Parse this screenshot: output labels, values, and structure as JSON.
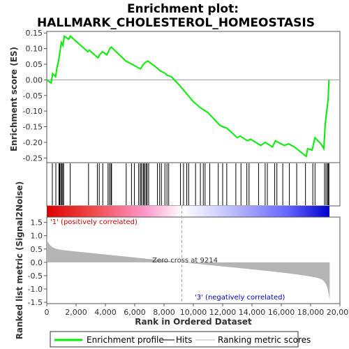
{
  "chart_data": {
    "type": "line",
    "title_line1": "Enrichment plot:",
    "title_line2": "HALLMARK_CHOLESTEROL_HOMEOSTASIS",
    "xlabel": "Rank in Ordered Dataset",
    "top_ylabel": "Enrichment score (ES)",
    "bottom_ylabel_line1": "Ranked list metric (Signal2Noise)",
    "bottom_ylabel_line2": "",
    "xlim": [
      0,
      20000
    ],
    "x_ticks": [
      0,
      2000,
      4000,
      6000,
      8000,
      10000,
      12000,
      14000,
      16000,
      18000,
      20000
    ],
    "x_tick_labels": [
      "0",
      "2,000",
      "4,000",
      "6,000",
      "8,000",
      "10,000",
      "12,000",
      "14,000",
      "16,000",
      "18,000",
      "20,000"
    ],
    "es_ylim": [
      -0.265,
      0.155
    ],
    "es_ticks": [
      -0.25,
      -0.2,
      -0.15,
      -0.1,
      -0.05,
      0.0,
      0.05,
      0.1,
      0.15
    ],
    "es_tick_labels": [
      "-0.25",
      "-0.20",
      "-0.15",
      "-0.10",
      "-0.05",
      "0.00",
      "0.05",
      "0.10",
      "0.15"
    ],
    "metric_ylim": [
      -1.55,
      1.7
    ],
    "metric_ticks": [
      -1.5,
      -1.0,
      -0.5,
      0.0,
      0.5,
      1.0,
      1.5
    ],
    "metric_tick_labels": [
      "-1.5",
      "-1.0",
      "-0.5",
      "0.0",
      "0.5",
      "1.0",
      "1.5"
    ],
    "n_genes": 19300,
    "zero_cross": 9214,
    "zero_cross_label": "Zero cross at 9214",
    "pos_label": "'1' (positively correlated)",
    "neg_label": "'3' (negatively correlated)",
    "enrichment_profile": [
      [
        0,
        0.0
      ],
      [
        300,
        -0.01
      ],
      [
        400,
        0.02
      ],
      [
        600,
        0.01
      ],
      [
        700,
        0.04
      ],
      [
        800,
        0.06
      ],
      [
        900,
        0.09
      ],
      [
        1000,
        0.12
      ],
      [
        1100,
        0.11
      ],
      [
        1200,
        0.14
      ],
      [
        1500,
        0.13
      ],
      [
        1600,
        0.14
      ],
      [
        2800,
        0.09
      ],
      [
        2900,
        0.095
      ],
      [
        3500,
        0.07
      ],
      [
        3600,
        0.08
      ],
      [
        3800,
        0.09
      ],
      [
        4100,
        0.08
      ],
      [
        4300,
        0.1
      ],
      [
        4400,
        0.105
      ],
      [
        5400,
        0.06
      ],
      [
        5800,
        0.05
      ],
      [
        6200,
        0.04
      ],
      [
        6400,
        0.035
      ],
      [
        6600,
        0.05
      ],
      [
        6700,
        0.055
      ],
      [
        6900,
        0.06
      ],
      [
        7600,
        0.035
      ],
      [
        7700,
        0.03
      ],
      [
        8100,
        0.02
      ],
      [
        8200,
        0.015
      ],
      [
        8500,
        0.01
      ],
      [
        9100,
        -0.02
      ],
      [
        10000,
        -0.07
      ],
      [
        10500,
        -0.09
      ],
      [
        11000,
        -0.105
      ],
      [
        11600,
        -0.135
      ],
      [
        11800,
        -0.145
      ],
      [
        12000,
        -0.15
      ],
      [
        12300,
        -0.155
      ],
      [
        13000,
        -0.185
      ],
      [
        13200,
        -0.18
      ],
      [
        13700,
        -0.195
      ],
      [
        13900,
        -0.19
      ],
      [
        14600,
        -0.21
      ],
      [
        14900,
        -0.2
      ],
      [
        15400,
        -0.215
      ],
      [
        15600,
        -0.195
      ],
      [
        16200,
        -0.21
      ],
      [
        16500,
        -0.205
      ],
      [
        16900,
        -0.215
      ],
      [
        17700,
        -0.245
      ],
      [
        17800,
        -0.22
      ],
      [
        18100,
        -0.225
      ],
      [
        18300,
        -0.185
      ],
      [
        18700,
        -0.205
      ],
      [
        18900,
        -0.22
      ],
      [
        19000,
        -0.14
      ],
      [
        19100,
        -0.1
      ],
      [
        19200,
        -0.06
      ],
      [
        19250,
        0.0
      ]
    ],
    "hits": [
      380,
      620,
      830,
      880,
      950,
      1020,
      1090,
      1150,
      1600,
      2850,
      3450,
      3580,
      3820,
      4180,
      4280,
      4380,
      4420,
      5420,
      5780,
      5980,
      6270,
      6380,
      6450,
      6570,
      6610,
      6690,
      6780,
      6850,
      6950,
      7550,
      7700,
      7820,
      8060,
      8200,
      8320,
      9120,
      9330,
      9550,
      9680,
      10150,
      10480,
      10680,
      10800,
      11120,
      11700,
      12000,
      12280,
      12900,
      13250,
      13650,
      13800,
      14450,
      14900,
      15050,
      15550,
      15700,
      16100,
      16550,
      17050,
      17650,
      18150,
      18300,
      18950,
      19050,
      19150,
      19200,
      19250
    ],
    "legend": [
      "Enrichment profile",
      "Hits",
      "Ranking metric scores"
    ],
    "colors": {
      "profile": "#00ee00",
      "hits": "#000000",
      "metric_fill": "#b4b4b4",
      "zero_line": "#999999",
      "pos_text": "#cc0000",
      "neg_text": "#0000cc",
      "bar_pos": "#dd0000",
      "bar_mid": "#ffffff",
      "bar_neg": "#0000cc"
    }
  }
}
